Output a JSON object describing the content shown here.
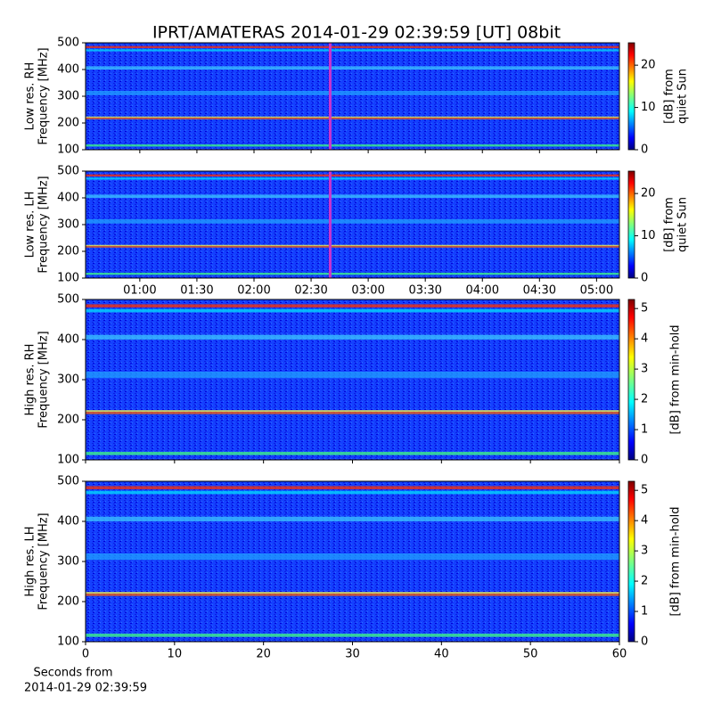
{
  "chart_data": [
    {
      "type": "heatmap",
      "title": "IPRT/AMATERAS 2014-01-29 02:39:59 [UT]   08bit",
      "ylabel": [
        "Low res. RH",
        "Frequency [MHz]"
      ],
      "ylim": [
        100,
        500
      ],
      "yticks": [
        100,
        200,
        300,
        400,
        500
      ],
      "xlim": [
        31.5,
        312
      ],
      "marker": {
        "x": 160,
        "color": "#cc33cc"
      },
      "cmap": "jet",
      "clim": [
        0,
        25.3
      ],
      "cticks": [
        0,
        10,
        20
      ],
      "clabel": [
        "[dB] from",
        "quiet Sun"
      ]
    },
    {
      "type": "heatmap",
      "ylabel": [
        "Low res. LH",
        "Frequency [MHz]"
      ],
      "ylim": [
        100,
        500
      ],
      "yticks": [
        100,
        200,
        300,
        400,
        500
      ],
      "xlim": [
        31.5,
        312
      ],
      "xticks": [
        {
          "value": 60,
          "label": "01:00"
        },
        {
          "value": 90,
          "label": "01:30"
        },
        {
          "value": 120,
          "label": "02:00"
        },
        {
          "value": 150,
          "label": "02:30"
        },
        {
          "value": 180,
          "label": "03:00"
        },
        {
          "value": 210,
          "label": "03:30"
        },
        {
          "value": 240,
          "label": "04:00"
        },
        {
          "value": 270,
          "label": "04:30"
        },
        {
          "value": 300,
          "label": "05:00"
        }
      ],
      "marker": {
        "x": 160,
        "color": "#cc33cc"
      },
      "cmap": "jet",
      "clim": [
        0,
        25.3
      ],
      "cticks": [
        0,
        10,
        20
      ],
      "clabel": [
        "[dB] from",
        "quiet Sun"
      ]
    },
    {
      "type": "heatmap",
      "ylabel": [
        "High res. RH",
        "Frequency [MHz]"
      ],
      "ylim": [
        100,
        500
      ],
      "yticks": [
        100,
        200,
        300,
        400,
        500
      ],
      "xlim": [
        0,
        60
      ],
      "cmap": "jet",
      "clim": [
        0,
        5.3
      ],
      "cticks": [
        0,
        1,
        2,
        3,
        4,
        5
      ],
      "clabel": [
        "[dB] from min-hold"
      ]
    },
    {
      "type": "heatmap",
      "ylabel": [
        "High res. LH",
        "Frequency [MHz]"
      ],
      "ylim": [
        100,
        500
      ],
      "yticks": [
        100,
        200,
        300,
        400,
        500
      ],
      "xlim": [
        0,
        60
      ],
      "xticks": [
        0,
        10,
        20,
        30,
        40,
        50,
        60
      ],
      "xlabel": [
        "Seconds from",
        "2014-01-29 02:39:59"
      ],
      "cmap": "jet",
      "clim": [
        0,
        5.3
      ],
      "cticks": [
        0,
        1,
        2,
        3,
        4,
        5
      ],
      "clabel": [
        "[dB] from min-hold"
      ]
    }
  ]
}
